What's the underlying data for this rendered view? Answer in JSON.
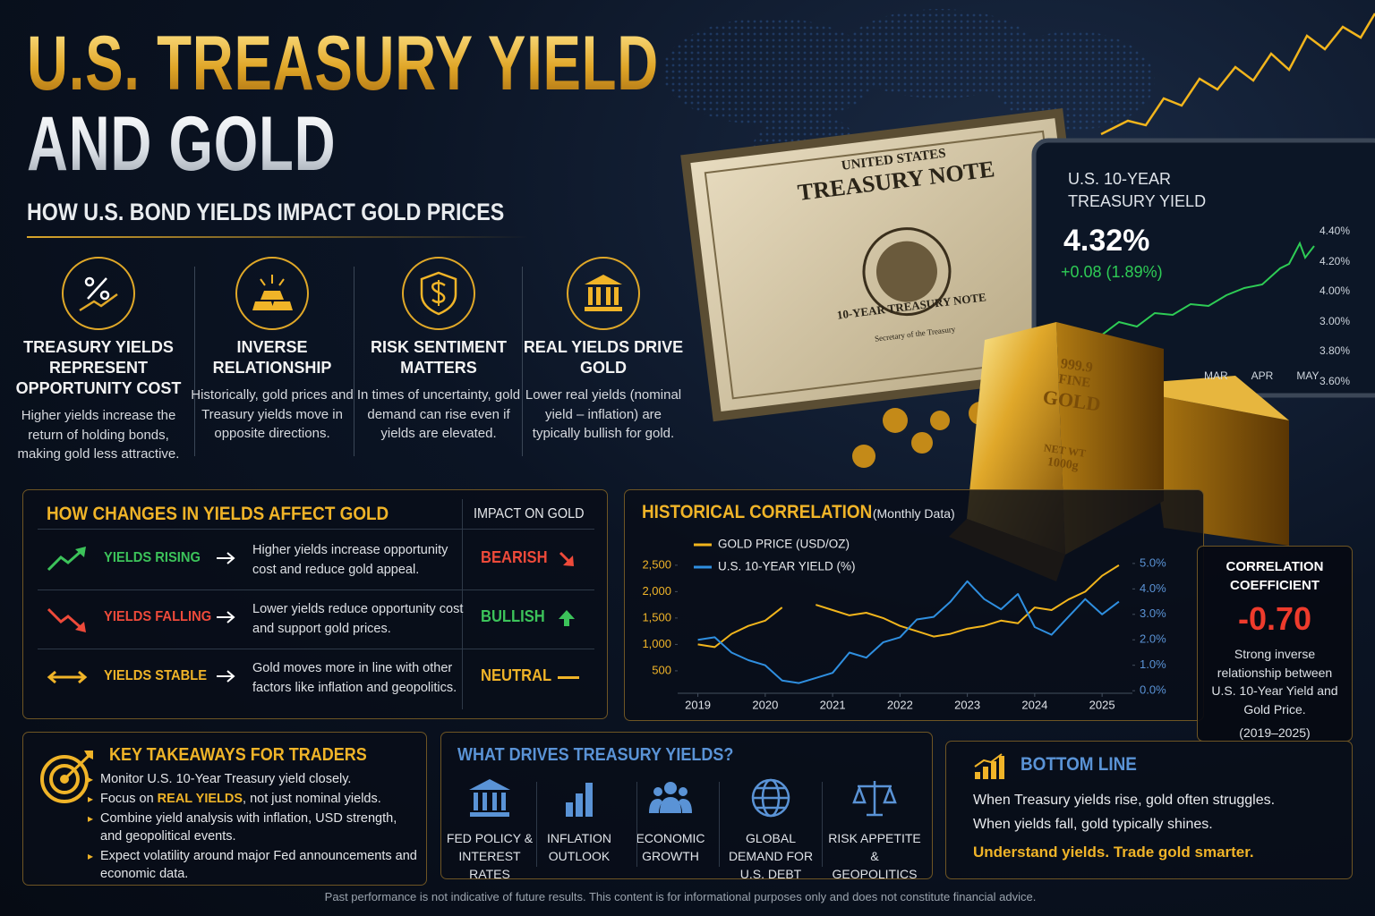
{
  "header": {
    "title_line_1": "U.S. TREASURY YIELD",
    "title_line_2": "AND GOLD",
    "subtitle": "HOW U.S. BOND YIELDS IMPACT GOLD PRICES"
  },
  "concepts": [
    {
      "title": "TREASURY YIELDS REPRESENT OPPORTUNITY COST",
      "text": "Higher yields increase the return of holding bonds, making gold less attractive."
    },
    {
      "title": "INVERSE RELATIONSHIP",
      "text": "Historically, gold prices and Treasury yields move in opposite directions."
    },
    {
      "title": "RISK SENTIMENT MATTERS",
      "text": "In times of uncertainty, gold demand can rise even if yields are elevated."
    },
    {
      "title": "REAL YIELDS DRIVE GOLD",
      "text": "Lower real yields (nominal yield – inflation) are typically bullish for gold."
    }
  ],
  "illustration": {
    "note_header": "UNITED STATES",
    "note_title": "TREASURY NOTE",
    "note_subtitle": "10-YEAR TREASURY NOTE",
    "note_signature": "Secretary of the Treasury",
    "bar_purity": "999.9",
    "bar_fine": "FINE",
    "bar_metal": "GOLD",
    "bar_weight_label": "NET WT",
    "bar_weight": "1000g"
  },
  "tablet": {
    "title": "U.S. 10-YEAR TREASURY YIELD",
    "value": "4.32%",
    "change": "+0.08 (1.89%)",
    "axis_labels": [
      "4.40%",
      "4.20%",
      "4.00%",
      "3.00%",
      "3.80%",
      "3.60%"
    ],
    "months": [
      "MAR",
      "APR",
      "MAY"
    ]
  },
  "impact_table": {
    "title": "HOW CHANGES IN YIELDS AFFECT GOLD",
    "column_header": "IMPACT ON GOLD",
    "rows": [
      {
        "condition": "YIELDS RISING",
        "effect": "Higher yields increase opportunity cost and reduce gold appeal.",
        "impact": "BEARISH"
      },
      {
        "condition": "YIELDS FALLING",
        "effect": "Lower yields reduce opportunity cost and support gold prices.",
        "impact": "BULLISH"
      },
      {
        "condition": "YIELDS STABLE",
        "effect": "Gold moves more in line with other factors like inflation and geopolitics.",
        "impact": "NEUTRAL"
      }
    ]
  },
  "chart_data": {
    "type": "line",
    "title": "HISTORICAL CORRELATION",
    "subtitle": "(Monthly Data)",
    "x": [
      2019,
      2019.25,
      2019.5,
      2019.75,
      2020,
      2020.25,
      2020.5,
      2020.75,
      2021,
      2021.25,
      2021.5,
      2021.75,
      2022,
      2022.25,
      2022.5,
      2022.75,
      2023,
      2023.25,
      2023.5,
      2023.75,
      2024,
      2024.25,
      2024.5,
      2024.75,
      2025,
      2025.25
    ],
    "xlim": [
      2018.7,
      2025.45
    ],
    "xticks": [
      2019,
      2020,
      2021,
      2022,
      2023,
      2024,
      2025
    ],
    "ylim": [
      75,
      3040
    ],
    "yticks": [
      500,
      {
        "value": 1000,
        "label": "1,000"
      },
      {
        "value": 1500,
        "label": "1,500"
      },
      {
        "value": 2000,
        "label": "2,000"
      },
      {
        "value": 2500,
        "label": "2,500"
      }
    ],
    "y2lim": [
      -0.1,
      6.05
    ],
    "y2ticks": [
      {
        "value": 0,
        "label": "0.0%"
      },
      {
        "value": 1,
        "label": "1.0%"
      },
      {
        "value": 2,
        "label": "2.0%"
      },
      {
        "value": 3,
        "label": "3.0%"
      },
      {
        "value": 4,
        "label": "4.0%"
      },
      {
        "value": 5,
        "label": "5.0%"
      }
    ],
    "series": [
      {
        "name": "GOLD PRICE (USD/OZ)",
        "color": "#f2b51c",
        "values": [
          1000,
          950,
          1200,
          1350,
          1450,
          1700,
          null,
          1750,
          1650,
          1550,
          1600,
          1500,
          1350,
          1250,
          1150,
          1200,
          1300,
          1350,
          1450,
          1400,
          1700,
          1650,
          1850,
          2000,
          2300,
          2500
        ]
      },
      {
        "name": "U.S. 10-YEAR YIELD (%)",
        "color": "#2f8fe0",
        "axis": "y2",
        "values": [
          2.0,
          2.1,
          1.5,
          1.2,
          1.0,
          0.4,
          0.3,
          0.5,
          0.7,
          1.5,
          1.3,
          1.9,
          2.1,
          2.8,
          2.9,
          3.5,
          4.3,
          3.6,
          3.2,
          3.8,
          2.5,
          2.2,
          2.9,
          3.6,
          3.0,
          3.5
        ]
      }
    ]
  },
  "correlation": {
    "title": "CORRELATION COEFFICIENT",
    "value": "-0.70",
    "text": "Strong inverse relationship between U.S. 10-Year Yield and Gold Price.",
    "period": "(2019–2025)"
  },
  "takeaways": {
    "title": "KEY TAKEAWAYS FOR TRADERS",
    "items": [
      "Monitor U.S. 10-Year Treasury yield closely.",
      {
        "text_before": "Focus on ",
        "highlight": "REAL YIELDS",
        "text_after": ", not just nominal yields."
      },
      "Combine yield analysis with inflation, USD strength, and geopolitical events.",
      "Expect volatility around major Fed announcements and economic data."
    ]
  },
  "drivers": {
    "title": "WHAT DRIVES TREASURY YIELDS?",
    "items": [
      "FED POLICY & INTEREST RATES",
      "INFLATION OUTLOOK",
      "ECONOMIC GROWTH",
      "GLOBAL DEMAND FOR U.S. DEBT",
      "RISK APPETITE & GEOPOLITICS"
    ]
  },
  "bottom_line": {
    "title": "BOTTOM LINE",
    "lines": [
      "When Treasury yields rise, gold often struggles.",
      "When yields fall, gold typically shines."
    ],
    "closing": "Understand yields. Trade gold smarter."
  },
  "disclaimer": "Past performance is not indicative of future results. This content is for informational purposes only and does not constitute financial advice."
}
